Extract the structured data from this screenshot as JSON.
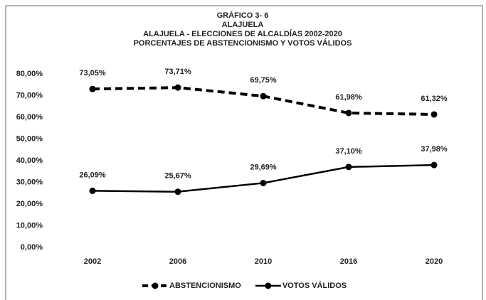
{
  "chart_data": {
    "type": "line",
    "title": [
      "GRÁFICO  3- 6",
      "ALAJUELA",
      "ALAJUELA - ELECCIONES DE ALCALDÍAS 2002-2020",
      "PORCENTAJES DE ABSTENCIONISMO Y VOTOS VÁLIDOS"
    ],
    "categories": [
      "2002",
      "2006",
      "2010",
      "2016",
      "2020"
    ],
    "series": [
      {
        "name": "ABSTENCIONISMO",
        "color": "#000000",
        "dashed": true,
        "values": [
          73.05,
          73.71,
          69.75,
          61.98,
          61.32
        ],
        "value_labels": [
          "73,05%",
          "73,71%",
          "69,75%",
          "61,98%",
          "61,32%"
        ]
      },
      {
        "name": "VOTOS VÁLIDOS",
        "color": "#000000",
        "dashed": false,
        "values": [
          26.09,
          25.67,
          29.69,
          37.1,
          37.98
        ],
        "value_labels": [
          "26,09%",
          "25,67%",
          "29,69%",
          "37,10%",
          "37,98%"
        ]
      }
    ],
    "ylim": [
      0,
      80
    ],
    "yticks": [
      {
        "value": 0,
        "label": "0,00%"
      },
      {
        "value": 10,
        "label": "10,00%"
      },
      {
        "value": 20,
        "label": "20,00%"
      },
      {
        "value": 30,
        "label": "30,00%"
      },
      {
        "value": 40,
        "label": "40,00%"
      },
      {
        "value": 50,
        "label": "50,00%"
      },
      {
        "value": 60,
        "label": "60,00%"
      },
      {
        "value": 70,
        "label": "70,00%"
      },
      {
        "value": 80,
        "label": "80,00%"
      }
    ],
    "grid": false,
    "legend": "bottom"
  }
}
